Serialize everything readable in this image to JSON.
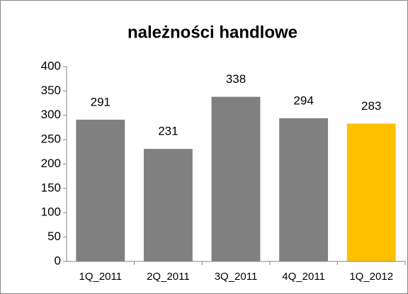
{
  "chart_data": {
    "type": "bar",
    "title": "należności handlowe",
    "categories": [
      "1Q_2011",
      "2Q_2011",
      "3Q_2011",
      "4Q_2011",
      "1Q_2012"
    ],
    "values": [
      291,
      231,
      338,
      294,
      283
    ],
    "colors": [
      "#808080",
      "#808080",
      "#808080",
      "#808080",
      "#ffc000"
    ],
    "ylim": [
      0,
      400
    ],
    "yticks": [
      0,
      50,
      100,
      150,
      200,
      250,
      300,
      350,
      400
    ],
    "grid": false
  }
}
